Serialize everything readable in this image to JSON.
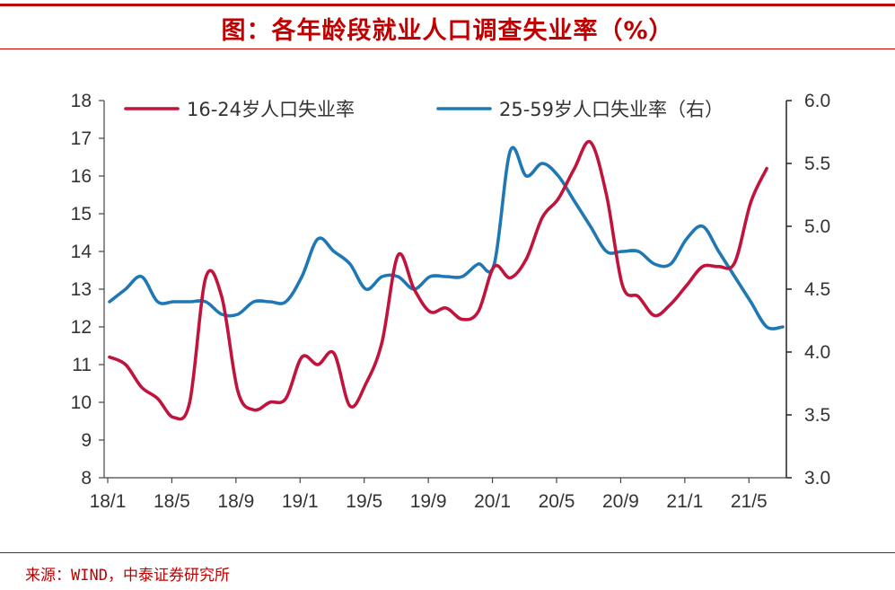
{
  "header": {
    "title": "图：各年龄段就业人口调查失业率（%）"
  },
  "footer": {
    "source": "来源：WIND，中泰证券研究所"
  },
  "colors": {
    "series1": "#c0143c",
    "series2": "#1f78b4",
    "accent": "#c00000"
  },
  "chart_data": {
    "type": "line",
    "title": "图：各年龄段就业人口调查失业率（%）",
    "x_tick_labels": [
      "18/1",
      "18/5",
      "18/9",
      "19/1",
      "19/5",
      "19/9",
      "20/1",
      "20/5",
      "20/9",
      "21/1",
      "21/5"
    ],
    "y_left": {
      "min": 8,
      "max": 18,
      "ticks": [
        "8",
        "9",
        "10",
        "11",
        "12",
        "13",
        "14",
        "15",
        "16",
        "17",
        "18"
      ]
    },
    "y_right": {
      "min": 3.0,
      "max": 6.0,
      "ticks": [
        "3.0",
        "3.5",
        "4.0",
        "4.5",
        "5.0",
        "5.5",
        "6.0"
      ]
    },
    "series": [
      {
        "name": "16-24岁人口失业率",
        "axis": "left",
        "color": "#c0143c",
        "x": [
          "2018-01",
          "2018-02",
          "2018-03",
          "2018-04",
          "2018-05",
          "2018-06",
          "2018-07",
          "2018-08",
          "2018-09",
          "2018-10",
          "2018-11",
          "2018-12",
          "2019-01",
          "2019-02",
          "2019-03",
          "2019-04",
          "2019-05",
          "2019-06",
          "2019-07",
          "2019-08",
          "2019-09",
          "2019-10",
          "2019-11",
          "2019-12",
          "2020-01",
          "2020-02",
          "2020-03",
          "2020-04",
          "2020-05",
          "2020-06",
          "2020-07",
          "2020-08",
          "2020-09",
          "2020-10",
          "2020-11",
          "2020-12",
          "2021-01",
          "2021-02",
          "2021-03",
          "2021-04",
          "2021-05",
          "2021-06",
          "2021-07"
        ],
        "values": [
          11.2,
          11.0,
          10.4,
          10.1,
          9.6,
          10.0,
          13.3,
          12.8,
          10.3,
          9.8,
          10.0,
          10.1,
          11.2,
          11.0,
          11.3,
          9.9,
          10.5,
          11.6,
          13.9,
          13.0,
          12.4,
          12.5,
          12.2,
          12.4,
          13.6,
          13.3,
          13.8,
          14.9,
          15.4,
          16.2,
          16.9,
          15.5,
          13.1,
          12.8,
          12.3,
          12.6,
          13.1,
          13.6,
          13.6,
          13.7,
          15.3,
          16.2,
          null
        ]
      },
      {
        "name": "25-59岁人口失业率（右）",
        "axis": "right",
        "color": "#1f78b4",
        "x": [
          "2018-01",
          "2018-02",
          "2018-03",
          "2018-04",
          "2018-05",
          "2018-06",
          "2018-07",
          "2018-08",
          "2018-09",
          "2018-10",
          "2018-11",
          "2018-12",
          "2019-01",
          "2019-02",
          "2019-03",
          "2019-04",
          "2019-05",
          "2019-06",
          "2019-07",
          "2019-08",
          "2019-09",
          "2019-10",
          "2019-11",
          "2019-12",
          "2020-01",
          "2020-02",
          "2020-03",
          "2020-04",
          "2020-05",
          "2020-06",
          "2020-07",
          "2020-08",
          "2020-09",
          "2020-10",
          "2020-11",
          "2020-12",
          "2021-01",
          "2021-02",
          "2021-03",
          "2021-04",
          "2021-05",
          "2021-06",
          "2021-07"
        ],
        "values": [
          4.4,
          4.5,
          4.6,
          4.4,
          4.4,
          4.4,
          4.4,
          4.3,
          4.3,
          4.4,
          4.4,
          4.4,
          4.6,
          4.9,
          4.8,
          4.7,
          4.5,
          4.6,
          4.6,
          4.5,
          4.6,
          4.6,
          4.6,
          4.7,
          4.7,
          5.6,
          5.4,
          5.5,
          5.4,
          5.2,
          5.0,
          4.8,
          4.8,
          4.8,
          4.7,
          4.7,
          4.9,
          5.0,
          4.8,
          4.6,
          4.4,
          4.2,
          4.2
        ]
      }
    ]
  }
}
